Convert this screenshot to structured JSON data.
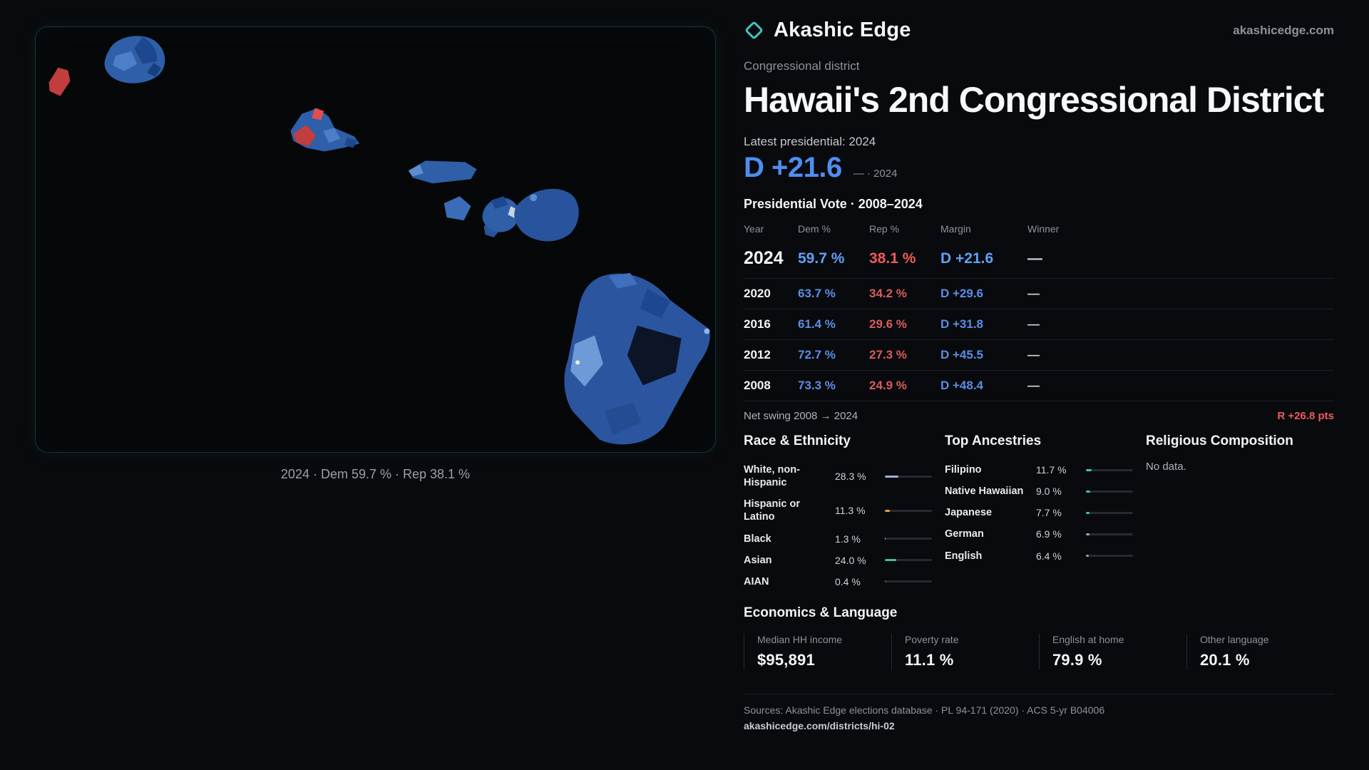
{
  "brand": {
    "name": "Akashic Edge",
    "domain": "akashicedge.com"
  },
  "header": {
    "kicker": "Congressional district",
    "title": "Hawaii's 2nd Congressional District"
  },
  "map": {
    "caption": "2024 · Dem 59.7 % · Rep 38.1 %"
  },
  "latest": {
    "label": "Latest presidential: 2024",
    "value": "D +21.6",
    "note": "— · 2024"
  },
  "vote_table": {
    "title": "Presidential Vote · 2008–2024",
    "columns": [
      "Year",
      "Dem %",
      "Rep %",
      "Margin",
      "Winner"
    ],
    "rows": [
      {
        "year": "2024",
        "dem": "59.7 %",
        "rep": "38.1 %",
        "margin": "D +21.6",
        "winner": "—"
      },
      {
        "year": "2020",
        "dem": "63.7 %",
        "rep": "34.2 %",
        "margin": "D +29.6",
        "winner": "—"
      },
      {
        "year": "2016",
        "dem": "61.4 %",
        "rep": "29.6 %",
        "margin": "D +31.8",
        "winner": "—"
      },
      {
        "year": "2012",
        "dem": "72.7 %",
        "rep": "27.3 %",
        "margin": "D +45.5",
        "winner": "—"
      },
      {
        "year": "2008",
        "dem": "73.3 %",
        "rep": "24.9 %",
        "margin": "D +48.4",
        "winner": "—"
      }
    ]
  },
  "swing": {
    "label": "Net swing 2008 → 2024",
    "value": "R +26.8 pts"
  },
  "race": {
    "title": "Race & Ethnicity",
    "rows": [
      {
        "label": "White, non-Hispanic",
        "value": "28.3 %",
        "pct": 28.3,
        "color": "#9fb0dc"
      },
      {
        "label": "Hispanic or Latino",
        "value": "11.3 %",
        "pct": 11.3,
        "color": "#e39a3b"
      },
      {
        "label": "Black",
        "value": "1.3 %",
        "pct": 1.3,
        "color": "#cfd4dc"
      },
      {
        "label": "Asian",
        "value": "24.0 %",
        "pct": 24.0,
        "color": "#46c08b"
      },
      {
        "label": "AIAN",
        "value": "0.4 %",
        "pct": 0.4,
        "color": "#d06a4a"
      }
    ]
  },
  "ancestries": {
    "title": "Top Ancestries",
    "rows": [
      {
        "label": "Filipino",
        "value": "11.7 %",
        "pct": 11.7,
        "color": "#35c9b0"
      },
      {
        "label": "Native Hawaiian",
        "value": "9.0 %",
        "pct": 9.0,
        "color": "#35c9b0"
      },
      {
        "label": "Japanese",
        "value": "7.7 %",
        "pct": 7.7,
        "color": "#35c9b0"
      },
      {
        "label": "German",
        "value": "6.9 %",
        "pct": 6.9,
        "color": "#9aa0a9"
      },
      {
        "label": "English",
        "value": "6.4 %",
        "pct": 6.4,
        "color": "#9aa0a9"
      }
    ]
  },
  "religion": {
    "title": "Religious Composition",
    "empty": "No data."
  },
  "economics": {
    "title": "Economics & Language",
    "stats": [
      {
        "label": "Median HH income",
        "value": "$95,891"
      },
      {
        "label": "Poverty rate",
        "value": "11.1 %"
      },
      {
        "label": "English at home",
        "value": "79.9 %"
      },
      {
        "label": "Other language",
        "value": "20.1 %"
      }
    ]
  },
  "footer": {
    "sources": "Sources: Akashic Edge elections database · PL 94-171 (2020) · ACS 5-yr B04006",
    "link": "akashicedge.com/districts/hi-02"
  },
  "colors": {
    "dem": "#5b8ee6",
    "dem_bright": "#5fa0f5",
    "rep": "#e25a5a",
    "swing_red": "#ef5a5a",
    "accent": "#3ec9bd"
  }
}
